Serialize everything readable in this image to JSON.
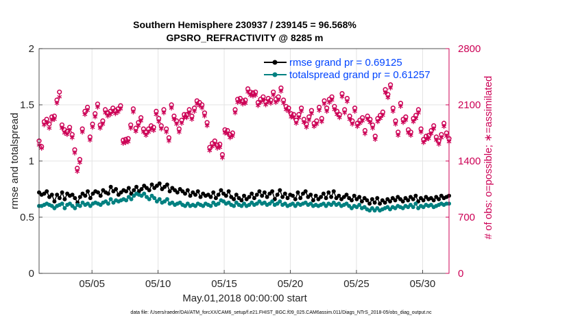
{
  "chart_data": {
    "type": "line",
    "title_line1": "Southern Hemisphere 230937 / 239145 = 96.568%",
    "title_line2": "GPSRO_REFRACTIVITY @ 8285 m",
    "xlabel": "May.01,2018 00:00:00 start",
    "ylabel": "rmse and totalspread",
    "ylabel_right": "# of obs: o=possible; ∗=assimilated",
    "xlim": [
      1,
      32
    ],
    "ylim": [
      0,
      2
    ],
    "ylim_right": [
      0,
      2800
    ],
    "x_ticks": [
      5,
      10,
      15,
      20,
      25,
      30
    ],
    "x_tick_labels": [
      "05/05",
      "05/10",
      "05/15",
      "05/20",
      "05/25",
      "05/30"
    ],
    "y_ticks": [
      0,
      0.5,
      1,
      1.5,
      2
    ],
    "y_tick_labels": [
      "0",
      "0.5",
      "1",
      "1.5",
      "2"
    ],
    "y_right_ticks": [
      0,
      700,
      1400,
      2100,
      2800
    ],
    "y_right_tick_labels": [
      "0",
      "700",
      "1400",
      "2100",
      "2800"
    ],
    "grid": true,
    "legend_position": "top-right",
    "footnote": "data file: /Users/raeder/DAI/ATM_forcXX/CAM6_setup/f.e21.FHIST_BGC.f09_025.CAM6assim.011/Diags_NTrS_2018-05/obs_diag_output.nc",
    "series": [
      {
        "name": "rmse grand pr = 0.69125",
        "color": "#000000",
        "axis": "left",
        "marker": "dot",
        "values": [
          0.72,
          0.7,
          0.71,
          0.73,
          0.68,
          0.7,
          0.64,
          0.7,
          0.67,
          0.72,
          0.66,
          0.71,
          0.69,
          0.7,
          0.67,
          0.63,
          0.68,
          0.71,
          0.69,
          0.73,
          0.67,
          0.71,
          0.73,
          0.72,
          0.69,
          0.74,
          0.72,
          0.71,
          0.77,
          0.73,
          0.75,
          0.7,
          0.72,
          0.74,
          0.73,
          0.76,
          0.71,
          0.74,
          0.77,
          0.73,
          0.75,
          0.78,
          0.76,
          0.74,
          0.79,
          0.76,
          0.78,
          0.8,
          0.75,
          0.77,
          0.79,
          0.73,
          0.76,
          0.74,
          0.72,
          0.75,
          0.73,
          0.71,
          0.74,
          0.69,
          0.72,
          0.7,
          0.73,
          0.68,
          0.71,
          0.69,
          0.7,
          0.68,
          0.72,
          0.67,
          0.7,
          0.74,
          0.71,
          0.69,
          0.73,
          0.68,
          0.66,
          0.7,
          0.67,
          0.65,
          0.69,
          0.66,
          0.68,
          0.71,
          0.67,
          0.7,
          0.73,
          0.69,
          0.72,
          0.68,
          0.71,
          0.73,
          0.66,
          0.7,
          0.74,
          0.68,
          0.71,
          0.67,
          0.7,
          0.69,
          0.66,
          0.72,
          0.67,
          0.71,
          0.73,
          0.68,
          0.7,
          0.65,
          0.69,
          0.66,
          0.68,
          0.71,
          0.67,
          0.72,
          0.68,
          0.73,
          0.67,
          0.69,
          0.66,
          0.68,
          0.7,
          0.67,
          0.65,
          0.69,
          0.66,
          0.68,
          0.64,
          0.67,
          0.65,
          0.62,
          0.66,
          0.63,
          0.67,
          0.62,
          0.65,
          0.63,
          0.66,
          0.64,
          0.67,
          0.65,
          0.68,
          0.66,
          0.64,
          0.67,
          0.65,
          0.68,
          0.66,
          0.69,
          0.64,
          0.67,
          0.65,
          0.68,
          0.66,
          0.67,
          0.65,
          0.68,
          0.66,
          0.69,
          0.67,
          0.68,
          0.69
        ]
      },
      {
        "name": "totalspread grand pr = 0.61257",
        "color": "#008080",
        "axis": "left",
        "marker": "dot",
        "values": [
          0.6,
          0.6,
          0.61,
          0.62,
          0.61,
          0.6,
          0.58,
          0.6,
          0.61,
          0.62,
          0.58,
          0.61,
          0.62,
          0.6,
          0.58,
          0.61,
          0.6,
          0.63,
          0.61,
          0.62,
          0.6,
          0.62,
          0.63,
          0.62,
          0.61,
          0.63,
          0.64,
          0.62,
          0.66,
          0.63,
          0.65,
          0.64,
          0.65,
          0.66,
          0.65,
          0.68,
          0.66,
          0.69,
          0.71,
          0.7,
          0.69,
          0.71,
          0.68,
          0.66,
          0.69,
          0.67,
          0.64,
          0.66,
          0.63,
          0.64,
          0.66,
          0.62,
          0.63,
          0.61,
          0.62,
          0.63,
          0.61,
          0.6,
          0.62,
          0.6,
          0.61,
          0.6,
          0.62,
          0.61,
          0.6,
          0.62,
          0.61,
          0.6,
          0.63,
          0.61,
          0.62,
          0.65,
          0.64,
          0.62,
          0.63,
          0.61,
          0.6,
          0.63,
          0.61,
          0.6,
          0.62,
          0.6,
          0.61,
          0.63,
          0.61,
          0.62,
          0.64,
          0.62,
          0.63,
          0.61,
          0.62,
          0.64,
          0.61,
          0.62,
          0.64,
          0.61,
          0.62,
          0.6,
          0.61,
          0.62,
          0.6,
          0.62,
          0.61,
          0.62,
          0.63,
          0.61,
          0.62,
          0.6,
          0.61,
          0.6,
          0.61,
          0.62,
          0.6,
          0.62,
          0.61,
          0.63,
          0.61,
          0.62,
          0.6,
          0.61,
          0.62,
          0.6,
          0.58,
          0.6,
          0.59,
          0.61,
          0.58,
          0.59,
          0.57,
          0.56,
          0.58,
          0.56,
          0.58,
          0.56,
          0.57,
          0.58,
          0.59,
          0.57,
          0.59,
          0.58,
          0.6,
          0.59,
          0.58,
          0.6,
          0.59,
          0.61,
          0.59,
          0.62,
          0.58,
          0.6,
          0.59,
          0.61,
          0.6,
          0.61,
          0.59,
          0.6,
          0.61,
          0.62,
          0.61,
          0.62,
          0.62
        ]
      },
      {
        "name": "possible",
        "color": "#cc0055",
        "axis": "right",
        "marker": "circle",
        "values": [
          1650,
          1580,
          1890,
          1920,
          1860,
          1950,
          1960,
          2160,
          2260,
          1850,
          1790,
          1770,
          1820,
          1730,
          1540,
          1310,
          1420,
          1800,
          2020,
          2070,
          1700,
          1860,
          1990,
          2110,
          1850,
          1900,
          2040,
          2000,
          2020,
          2060,
          2030,
          2050,
          2090,
          1660,
          1670,
          1680,
          1850,
          2050,
          1810,
          1880,
          1940,
          1800,
          1760,
          1800,
          1840,
          1820,
          2020,
          1930,
          1840,
          2040,
          1800,
          1690,
          2100,
          1960,
          1900,
          1800,
          1910,
          1980,
          1980,
          2040,
          1960,
          2060,
          2150,
          2130,
          2100,
          2000,
          1880,
          1570,
          1620,
          1650,
          1600,
          1610,
          1480,
          1790,
          1780,
          1730,
          1750,
          2040,
          2170,
          2180,
          2150,
          2160,
          2300,
          2260,
          2250,
          2260,
          2130,
          2170,
          2200,
          2140,
          2180,
          2160,
          2260,
          2170,
          2200,
          2310,
          2160,
          2080,
          2060,
          1990,
          1980,
          1910,
          1980,
          2060,
          1920,
          1860,
          1950,
          2030,
          1870,
          1900,
          2070,
          1930,
          2150,
          2060,
          2170,
          2200,
          2080,
          2020,
          1980,
          2240,
          2040,
          2180,
          1960,
          1900,
          2060,
          1870,
          1910,
          1940,
          1780,
          1960,
          1920,
          1850,
          1710,
          1930,
          1970,
          2010,
          2290,
          2230,
          2350,
          2060,
          1900,
          1760,
          2120,
          1920,
          1950,
          1790,
          1760,
          1930,
          1970,
          2040,
          1800,
          1670,
          1710,
          1720,
          1780,
          1840,
          1700,
          1650,
          1730,
          1870,
          1750,
          1680
        ]
      },
      {
        "name": "assimilated",
        "color": "#cc0055",
        "axis": "right",
        "marker": "asterisk",
        "values": [
          1600,
          1560,
          1850,
          1880,
          1810,
          1910,
          1920,
          2120,
          2200,
          1810,
          1750,
          1730,
          1780,
          1690,
          1500,
          1270,
          1380,
          1760,
          1980,
          2030,
          1660,
          1820,
          1950,
          2070,
          1810,
          1860,
          2000,
          1960,
          1980,
          2020,
          1990,
          2010,
          2050,
          1620,
          1630,
          1640,
          1810,
          2010,
          1770,
          1840,
          1900,
          1760,
          1720,
          1760,
          1800,
          1780,
          1980,
          1890,
          1800,
          2000,
          1760,
          1650,
          2060,
          1920,
          1860,
          1760,
          1870,
          1940,
          1940,
          2000,
          1920,
          2020,
          2110,
          2090,
          2060,
          1960,
          1840,
          1530,
          1580,
          1610,
          1560,
          1570,
          1440,
          1750,
          1740,
          1690,
          1710,
          2000,
          2130,
          2140,
          2110,
          2120,
          2260,
          2220,
          2210,
          2220,
          2090,
          2130,
          2160,
          2100,
          2140,
          2120,
          2220,
          2130,
          2160,
          2270,
          2120,
          2040,
          2020,
          1950,
          1940,
          1870,
          1940,
          2020,
          1880,
          1820,
          1910,
          1990,
          1830,
          1860,
          2030,
          1890,
          2110,
          2020,
          2130,
          2160,
          2040,
          1980,
          1940,
          2200,
          2000,
          2140,
          1920,
          1860,
          2020,
          1830,
          1870,
          1900,
          1740,
          1920,
          1880,
          1810,
          1670,
          1890,
          1930,
          1970,
          2250,
          2190,
          2310,
          2020,
          1860,
          1720,
          2080,
          1880,
          1910,
          1750,
          1720,
          1890,
          1930,
          2000,
          1760,
          1630,
          1670,
          1680,
          1740,
          1800,
          1660,
          1610,
          1690,
          1830,
          1710,
          1640
        ]
      }
    ]
  }
}
